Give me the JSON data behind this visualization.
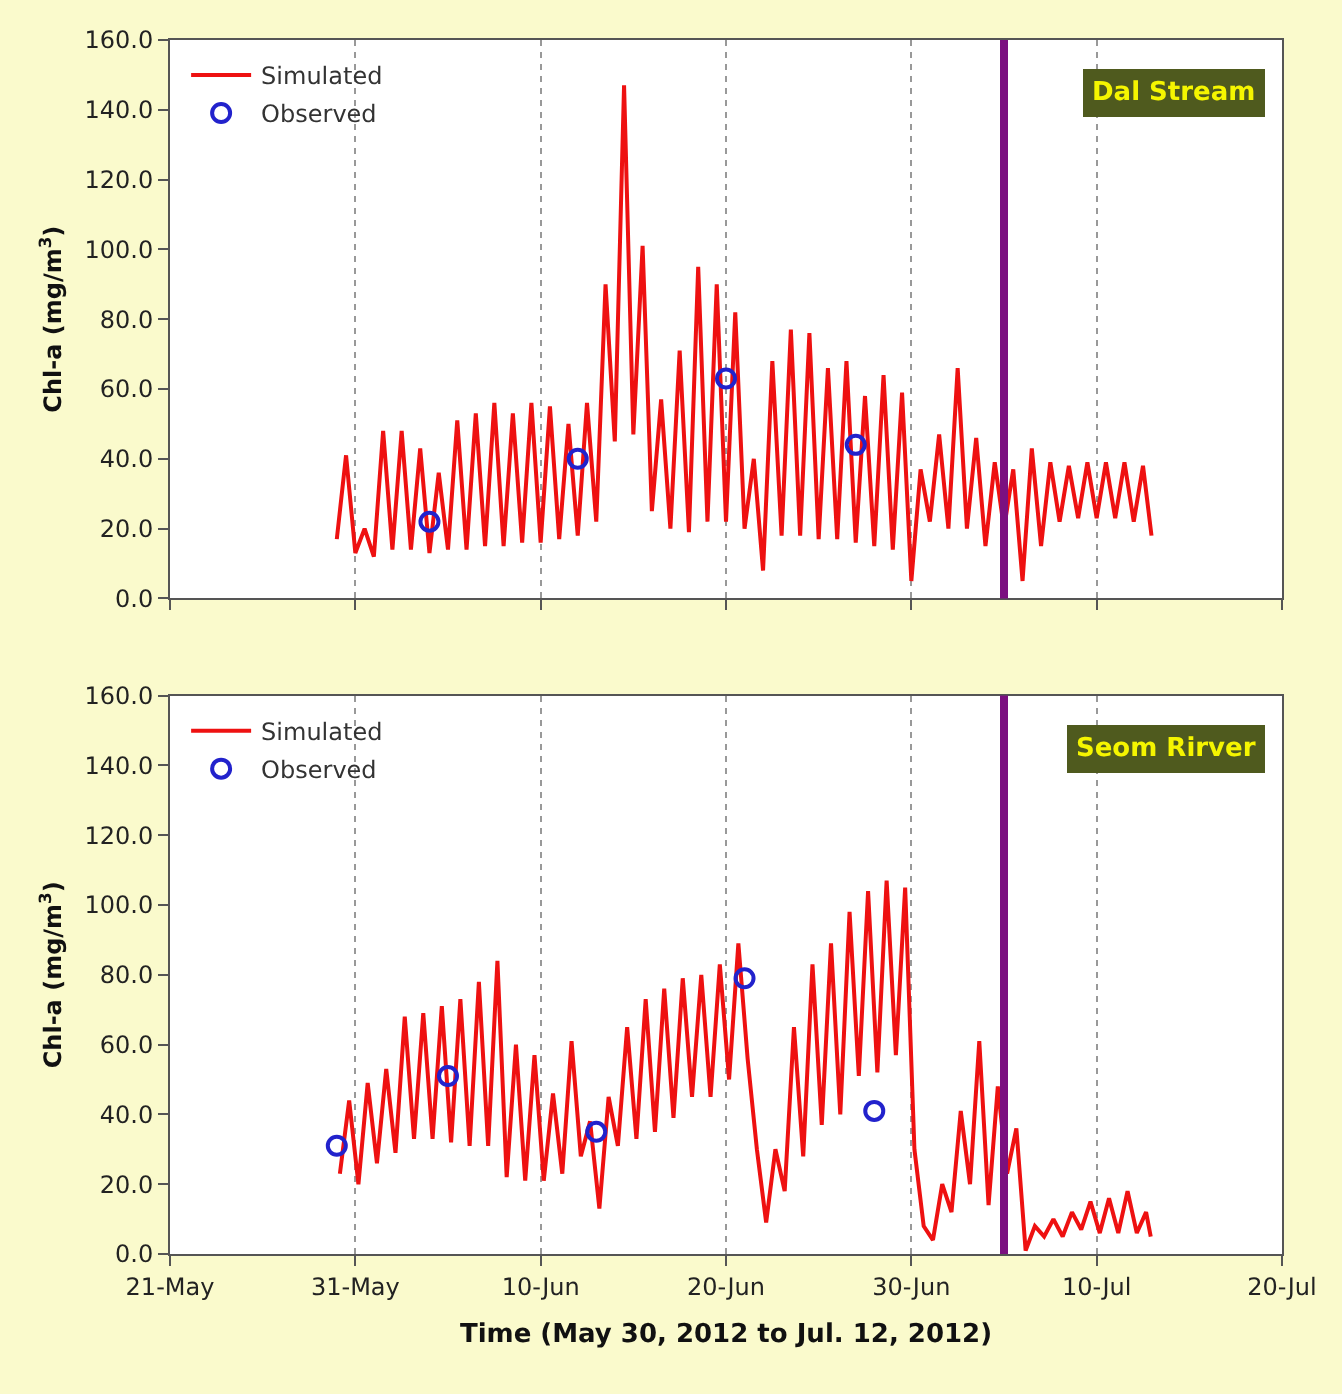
{
  "chart_data": [
    {
      "type": "line",
      "ylabel": "Chl-a (mg/m$^{3}$)",
      "annotations": [
        "Dal Stream"
      ],
      "xlim": [
        "2012-05-21",
        "2012-07-20"
      ],
      "xticks": [
        {
          "value": "2012-05-21",
          "label": null
        },
        {
          "value": "2012-05-31",
          "label": null
        },
        {
          "value": "2012-06-10",
          "label": null
        },
        {
          "value": "2012-06-20",
          "label": null
        },
        {
          "value": "2012-06-30",
          "label": null
        },
        {
          "value": "2012-07-10",
          "label": null
        },
        {
          "value": "2012-07-20",
          "label": null
        }
      ],
      "ylim": [
        0,
        160
      ],
      "yticks": [
        {
          "value": 0,
          "label": "0.0"
        },
        {
          "value": 20,
          "label": "20.0"
        },
        {
          "value": 40,
          "label": "40.0"
        },
        {
          "value": 60,
          "label": "60.0"
        },
        {
          "value": 80,
          "label": "80.0"
        },
        {
          "value": 100,
          "label": "100.0"
        },
        {
          "value": 120,
          "label": "120.0"
        },
        {
          "value": 140,
          "label": "140.0"
        },
        {
          "value": 160,
          "label": "160.0"
        }
      ],
      "tick_labels": "y",
      "grid": "x",
      "legend": "top left",
      "ref_lines": [
        {
          "axis": "x",
          "value": "2012-07-05",
          "color": "#7b1080"
        }
      ],
      "series": [
        {
          "name": "Simulated",
          "color": "#ee1111",
          "marker": "none",
          "line_style": "solid",
          "x": [
            "2012-05-30T00:00",
            "2012-05-30T12:00",
            "2012-05-31T00:00",
            "2012-05-31T12:00",
            "2012-06-01T00:00",
            "2012-06-01T12:00",
            "2012-06-02T00:00",
            "2012-06-02T12:00",
            "2012-06-03T00:00",
            "2012-06-03T12:00",
            "2012-06-04T00:00",
            "2012-06-04T12:00",
            "2012-06-05T00:00",
            "2012-06-05T12:00",
            "2012-06-06T00:00",
            "2012-06-06T12:00",
            "2012-06-07T00:00",
            "2012-06-07T12:00",
            "2012-06-08T00:00",
            "2012-06-08T12:00",
            "2012-06-09T00:00",
            "2012-06-09T12:00",
            "2012-06-10T00:00",
            "2012-06-10T12:00",
            "2012-06-11T00:00",
            "2012-06-11T12:00",
            "2012-06-12T00:00",
            "2012-06-12T12:00",
            "2012-06-13T00:00",
            "2012-06-13T12:00",
            "2012-06-14T00:00",
            "2012-06-14T12:00",
            "2012-06-15T00:00",
            "2012-06-15T12:00",
            "2012-06-16T00:00",
            "2012-06-16T12:00",
            "2012-06-17T00:00",
            "2012-06-17T12:00",
            "2012-06-18T00:00",
            "2012-06-18T12:00",
            "2012-06-19T00:00",
            "2012-06-19T12:00",
            "2012-06-20T00:00",
            "2012-06-20T12:00",
            "2012-06-21T00:00",
            "2012-06-21T12:00",
            "2012-06-22T00:00",
            "2012-06-22T12:00",
            "2012-06-23T00:00",
            "2012-06-23T12:00",
            "2012-06-24T00:00",
            "2012-06-24T12:00",
            "2012-06-25T00:00",
            "2012-06-25T12:00",
            "2012-06-26T00:00",
            "2012-06-26T12:00",
            "2012-06-27T00:00",
            "2012-06-27T12:00",
            "2012-06-28T00:00",
            "2012-06-28T12:00",
            "2012-06-29T00:00",
            "2012-06-29T12:00",
            "2012-06-30T00:00",
            "2012-06-30T12:00",
            "2012-07-01T00:00",
            "2012-07-01T12:00",
            "2012-07-02T00:00",
            "2012-07-02T12:00",
            "2012-07-03T00:00",
            "2012-07-03T12:00",
            "2012-07-04T00:00",
            "2012-07-04T12:00",
            "2012-07-05T00:00",
            "2012-07-05T12:00",
            "2012-07-06T00:00",
            "2012-07-06T12:00",
            "2012-07-07T00:00",
            "2012-07-07T12:00",
            "2012-07-08T00:00",
            "2012-07-08T12:00",
            "2012-07-09T00:00",
            "2012-07-09T12:00",
            "2012-07-10T00:00",
            "2012-07-10T12:00",
            "2012-07-11T00:00",
            "2012-07-11T12:00",
            "2012-07-12T00:00",
            "2012-07-12T12:00",
            "2012-07-12T23:00"
          ],
          "values": [
            17,
            41,
            13,
            20,
            12,
            48,
            14,
            48,
            14,
            43,
            13,
            36,
            14,
            51,
            14,
            53,
            15,
            56,
            15,
            53,
            16,
            56,
            16,
            55,
            17,
            50,
            18,
            56,
            22,
            90,
            45,
            147,
            47,
            101,
            25,
            57,
            20,
            71,
            19,
            95,
            22,
            90,
            22,
            82,
            20,
            40,
            8,
            68,
            18,
            77,
            18,
            76,
            17,
            66,
            17,
            68,
            16,
            58,
            15,
            64,
            14,
            59,
            5,
            37,
            22,
            47,
            20,
            66,
            20,
            46,
            15,
            39,
            20,
            37,
            5,
            43,
            15,
            39,
            22,
            38,
            23,
            39,
            23,
            39,
            23,
            39,
            22,
            38,
            18
          ]
        },
        {
          "name": "Observed",
          "type": "scatter",
          "color": "#2222cc",
          "marker": "circle",
          "x": [
            "2012-06-04",
            "2012-06-12",
            "2012-06-20",
            "2012-06-27"
          ],
          "values": [
            22,
            40,
            63,
            44
          ]
        }
      ]
    },
    {
      "type": "line",
      "xlabel": "Time (May 30, 2012 to Jul. 12, 2012)",
      "ylabel": "Chl-a (mg/m$^{3}$)",
      "annotations": [
        "Seom Rirver"
      ],
      "xlim": [
        "2012-05-21",
        "2012-07-20"
      ],
      "xticks": [
        {
          "value": "2012-05-21",
          "label": "21-May"
        },
        {
          "value": "2012-05-31",
          "label": "31-May"
        },
        {
          "value": "2012-06-10",
          "label": "10-Jun"
        },
        {
          "value": "2012-06-20",
          "label": "20-Jun"
        },
        {
          "value": "2012-06-30",
          "label": "30-Jun"
        },
        {
          "value": "2012-07-10",
          "label": "10-Jul"
        },
        {
          "value": "2012-07-20",
          "label": "20-Jul"
        }
      ],
      "ylim": [
        0,
        160
      ],
      "yticks": [
        {
          "value": 0,
          "label": "0.0"
        },
        {
          "value": 20,
          "label": "20.0"
        },
        {
          "value": 40,
          "label": "40.0"
        },
        {
          "value": 60,
          "label": "60.0"
        },
        {
          "value": 80,
          "label": "80.0"
        },
        {
          "value": 100,
          "label": "100.0"
        },
        {
          "value": 120,
          "label": "120.0"
        },
        {
          "value": 140,
          "label": "140.0"
        },
        {
          "value": 160,
          "label": "160.0"
        }
      ],
      "grid": "x",
      "legend": "top left",
      "ref_lines": [
        {
          "axis": "x",
          "value": "2012-07-05",
          "color": "#7b1080"
        }
      ],
      "series": [
        {
          "name": "Simulated",
          "color": "#ee1111",
          "marker": "none",
          "line_style": "solid",
          "x": [
            "2012-05-30T04:00",
            "2012-05-30T16:00",
            "2012-05-31T04:00",
            "2012-05-31T16:00",
            "2012-06-01T04:00",
            "2012-06-01T16:00",
            "2012-06-02T04:00",
            "2012-06-02T16:00",
            "2012-06-03T04:00",
            "2012-06-03T16:00",
            "2012-06-04T04:00",
            "2012-06-04T16:00",
            "2012-06-05T04:00",
            "2012-06-05T16:00",
            "2012-06-06T04:00",
            "2012-06-06T16:00",
            "2012-06-07T04:00",
            "2012-06-07T16:00",
            "2012-06-08T04:00",
            "2012-06-08T16:00",
            "2012-06-09T04:00",
            "2012-06-09T16:00",
            "2012-06-10T04:00",
            "2012-06-10T16:00",
            "2012-06-11T04:00",
            "2012-06-11T16:00",
            "2012-06-12T04:00",
            "2012-06-12T16:00",
            "2012-06-13T04:00",
            "2012-06-13T16:00",
            "2012-06-14T04:00",
            "2012-06-14T16:00",
            "2012-06-15T04:00",
            "2012-06-15T16:00",
            "2012-06-16T04:00",
            "2012-06-16T16:00",
            "2012-06-17T04:00",
            "2012-06-17T16:00",
            "2012-06-18T04:00",
            "2012-06-18T16:00",
            "2012-06-19T04:00",
            "2012-06-19T16:00",
            "2012-06-20T04:00",
            "2012-06-20T16:00",
            "2012-06-21T04:00",
            "2012-06-21T16:00",
            "2012-06-22T04:00",
            "2012-06-22T16:00",
            "2012-06-23T04:00",
            "2012-06-23T16:00",
            "2012-06-24T04:00",
            "2012-06-24T16:00",
            "2012-06-25T04:00",
            "2012-06-25T16:00",
            "2012-06-26T04:00",
            "2012-06-26T16:00",
            "2012-06-27T04:00",
            "2012-06-27T16:00",
            "2012-06-28T04:00",
            "2012-06-28T16:00",
            "2012-06-29T04:00",
            "2012-06-29T16:00",
            "2012-06-30T04:00",
            "2012-06-30T16:00",
            "2012-07-01T04:00",
            "2012-07-01T16:00",
            "2012-07-02T04:00",
            "2012-07-02T16:00",
            "2012-07-03T04:00",
            "2012-07-03T16:00",
            "2012-07-04T04:00",
            "2012-07-04T16:00",
            "2012-07-05T04:00",
            "2012-07-05T16:00",
            "2012-07-06T04:00",
            "2012-07-06T16:00",
            "2012-07-07T04:00",
            "2012-07-07T16:00",
            "2012-07-08T04:00",
            "2012-07-08T16:00",
            "2012-07-09T04:00",
            "2012-07-09T16:00",
            "2012-07-10T04:00",
            "2012-07-10T16:00",
            "2012-07-11T04:00",
            "2012-07-11T16:00",
            "2012-07-12T04:00",
            "2012-07-12T16:00",
            "2012-07-12T22:00"
          ],
          "values": [
            23,
            44,
            20,
            49,
            26,
            53,
            29,
            68,
            33,
            69,
            33,
            71,
            32,
            73,
            31,
            78,
            31,
            84,
            22,
            60,
            21,
            57,
            21,
            46,
            23,
            61,
            28,
            38,
            13,
            45,
            31,
            65,
            33,
            73,
            35,
            76,
            39,
            79,
            45,
            80,
            45,
            83,
            50,
            89,
            56,
            30,
            9,
            30,
            18,
            65,
            28,
            83,
            37,
            89,
            40,
            98,
            51,
            104,
            52,
            107,
            57,
            105,
            30,
            8,
            4,
            20,
            12,
            41,
            20,
            61,
            14,
            48,
            23,
            36,
            1,
            8,
            5,
            10,
            5,
            12,
            7,
            15,
            6,
            16,
            6,
            18,
            6,
            12,
            5
          ]
        },
        {
          "name": "Observed",
          "type": "scatter",
          "color": "#2222cc",
          "marker": "circle",
          "x": [
            "2012-05-30",
            "2012-06-05",
            "2012-06-13",
            "2012-06-21",
            "2012-06-28"
          ],
          "values": [
            31,
            51,
            35,
            79,
            41
          ]
        }
      ]
    }
  ]
}
